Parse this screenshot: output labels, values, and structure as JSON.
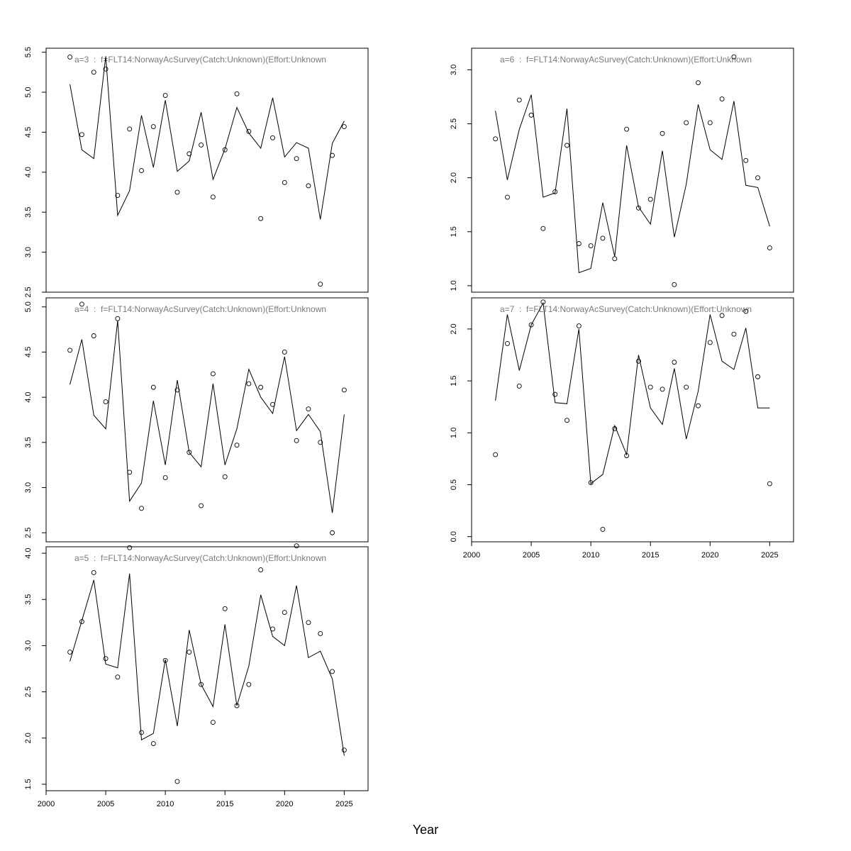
{
  "figure": {
    "xlabel": "Year"
  },
  "chart_data": [
    {
      "type": "scatter",
      "title": "a=3  :  f=FLT14:NorwayAcSurvey(Catch:Unknown)(Effort:Unknown",
      "x": [
        2002,
        2003,
        2004,
        2005,
        2006,
        2007,
        2008,
        2009,
        2010,
        2011,
        2012,
        2013,
        2014,
        2015,
        2016,
        2017,
        2018,
        2019,
        2020,
        2021,
        2022,
        2023,
        2024,
        2025
      ],
      "series": [
        {
          "kind": "line",
          "values": [
            5.1,
            4.28,
            4.17,
            5.45,
            3.46,
            3.77,
            4.71,
            4.06,
            4.9,
            4.01,
            4.14,
            4.75,
            3.91,
            4.29,
            4.81,
            4.49,
            4.3,
            4.93,
            4.19,
            4.37,
            4.3,
            3.41,
            4.36,
            4.64
          ]
        },
        {
          "kind": "points",
          "values": [
            5.44,
            4.47,
            5.25,
            5.29,
            3.71,
            4.54,
            4.02,
            4.57,
            4.96,
            3.75,
            4.23,
            4.34,
            3.69,
            4.28,
            4.98,
            4.51,
            3.42,
            4.43,
            3.87,
            4.17,
            3.83,
            2.6,
            4.21,
            4.57
          ]
        }
      ],
      "xlim": [
        2000,
        2027
      ],
      "ylim": [
        2.5,
        5.55
      ],
      "yticks": [
        "2.5",
        "3.0",
        "3.5",
        "4.0",
        "4.5",
        "5.0",
        "5.5"
      ],
      "xticks": []
    },
    {
      "type": "scatter",
      "title": "a=4  :  f=FLT14:NorwayAcSurvey(Catch:Unknown)(Effort:Unknown",
      "x": [
        2002,
        2003,
        2004,
        2005,
        2006,
        2007,
        2008,
        2009,
        2010,
        2011,
        2012,
        2013,
        2014,
        2015,
        2016,
        2017,
        2018,
        2019,
        2020,
        2021,
        2022,
        2023,
        2024,
        2025
      ],
      "series": [
        {
          "kind": "line",
          "values": [
            4.14,
            4.64,
            3.8,
            3.65,
            4.85,
            2.85,
            3.05,
            3.96,
            3.25,
            4.19,
            3.39,
            3.23,
            4.15,
            3.25,
            3.65,
            4.31,
            4.0,
            3.82,
            4.45,
            3.63,
            3.81,
            3.62,
            2.72,
            3.81
          ]
        },
        {
          "kind": "points",
          "values": [
            4.52,
            5.03,
            4.68,
            3.95,
            4.87,
            3.17,
            2.77,
            4.11,
            3.11,
            4.08,
            3.39,
            2.8,
            4.26,
            3.12,
            3.47,
            4.15,
            4.11,
            3.92,
            4.5,
            3.52,
            3.87,
            3.5,
            2.5,
            4.08
          ]
        }
      ],
      "xlim": [
        2000,
        2027
      ],
      "ylim": [
        2.4,
        5.1
      ],
      "yticks": [
        "2.5",
        "3.0",
        "3.5",
        "4.0",
        "4.5",
        "5.0"
      ],
      "xticks": []
    },
    {
      "type": "scatter",
      "title": "a=5  :  f=FLT14:NorwayAcSurvey(Catch:Unknown)(Effort:Unknown",
      "x": [
        2002,
        2003,
        2004,
        2005,
        2006,
        2007,
        2008,
        2009,
        2010,
        2011,
        2012,
        2013,
        2014,
        2015,
        2016,
        2017,
        2018,
        2019,
        2020,
        2021,
        2022,
        2023,
        2024,
        2025
      ],
      "series": [
        {
          "kind": "line",
          "values": [
            2.83,
            3.27,
            3.71,
            2.8,
            2.76,
            3.78,
            1.98,
            2.05,
            2.85,
            2.13,
            3.17,
            2.58,
            2.34,
            3.23,
            2.35,
            2.78,
            3.55,
            3.1,
            3.0,
            3.65,
            2.87,
            2.94,
            2.64,
            1.81
          ]
        },
        {
          "kind": "points",
          "values": [
            2.93,
            3.26,
            3.79,
            2.86,
            2.66,
            4.06,
            2.06,
            1.94,
            2.84,
            1.53,
            2.93,
            2.58,
            2.17,
            3.4,
            2.35,
            2.58,
            3.82,
            3.18,
            3.36,
            4.08,
            3.25,
            3.13,
            2.72,
            1.87
          ]
        }
      ],
      "xlim": [
        2000,
        2027
      ],
      "ylim": [
        1.43,
        4.07
      ],
      "yticks": [
        "1.5",
        "2.0",
        "2.5",
        "3.0",
        "3.5",
        "4.0"
      ],
      "xticks": [
        "2000",
        "2005",
        "2010",
        "2015",
        "2020",
        "2025"
      ]
    },
    {
      "type": "scatter",
      "title": "a=6  :  f=FLT14:NorwayAcSurvey(Catch:Unknown)(Effort:Unknown",
      "x": [
        2002,
        2003,
        2004,
        2005,
        2006,
        2007,
        2008,
        2009,
        2010,
        2011,
        2012,
        2013,
        2014,
        2015,
        2016,
        2017,
        2018,
        2019,
        2020,
        2021,
        2022,
        2023,
        2024,
        2025
      ],
      "series": [
        {
          "kind": "line",
          "values": [
            2.62,
            1.98,
            2.45,
            2.77,
            1.82,
            1.86,
            2.64,
            1.12,
            1.16,
            1.77,
            1.27,
            2.3,
            1.73,
            1.57,
            2.25,
            1.45,
            1.94,
            2.68,
            2.26,
            2.17,
            2.71,
            1.93,
            1.91,
            1.55
          ]
        },
        {
          "kind": "points",
          "values": [
            2.36,
            1.82,
            2.72,
            2.58,
            1.53,
            1.87,
            2.3,
            1.39,
            1.37,
            1.44,
            1.25,
            2.45,
            1.72,
            1.8,
            2.41,
            1.01,
            2.51,
            2.88,
            2.51,
            2.73,
            3.12,
            2.16,
            2.0,
            1.35
          ]
        }
      ],
      "xlim": [
        2000,
        2027
      ],
      "ylim": [
        0.94,
        3.2
      ],
      "yticks": [
        "1.0",
        "1.5",
        "2.0",
        "2.5",
        "3.0"
      ],
      "xticks": []
    },
    {
      "type": "scatter",
      "title": "a=7  :  f=FLT14:NorwayAcSurvey(Catch:Unknown)(Effort:Unknown",
      "x": [
        2002,
        2003,
        2004,
        2005,
        2006,
        2007,
        2008,
        2009,
        2010,
        2011,
        2012,
        2013,
        2014,
        2015,
        2016,
        2017,
        2018,
        2019,
        2020,
        2021,
        2022,
        2023,
        2024,
        2025
      ],
      "series": [
        {
          "kind": "line",
          "values": [
            1.31,
            2.14,
            1.6,
            2.04,
            2.25,
            1.29,
            1.28,
            2.0,
            0.51,
            0.6,
            1.07,
            0.79,
            1.75,
            1.24,
            1.08,
            1.62,
            0.94,
            1.4,
            2.14,
            1.69,
            1.61,
            2.01,
            1.24,
            1.24
          ]
        },
        {
          "kind": "points",
          "values": [
            0.79,
            1.86,
            1.45,
            2.04,
            2.26,
            1.37,
            1.12,
            2.03,
            0.52,
            0.07,
            1.04,
            0.78,
            1.69,
            1.44,
            1.42,
            1.68,
            1.44,
            1.26,
            1.87,
            2.13,
            1.95,
            2.17,
            1.54,
            0.51
          ]
        }
      ],
      "xlim": [
        2000,
        2027
      ],
      "ylim": [
        -0.05,
        2.3
      ],
      "yticks": [
        "0.0",
        "0.5",
        "1.0",
        "1.5",
        "2.0"
      ],
      "xticks": [
        "2000",
        "2005",
        "2010",
        "2015",
        "2020",
        "2025"
      ]
    }
  ]
}
